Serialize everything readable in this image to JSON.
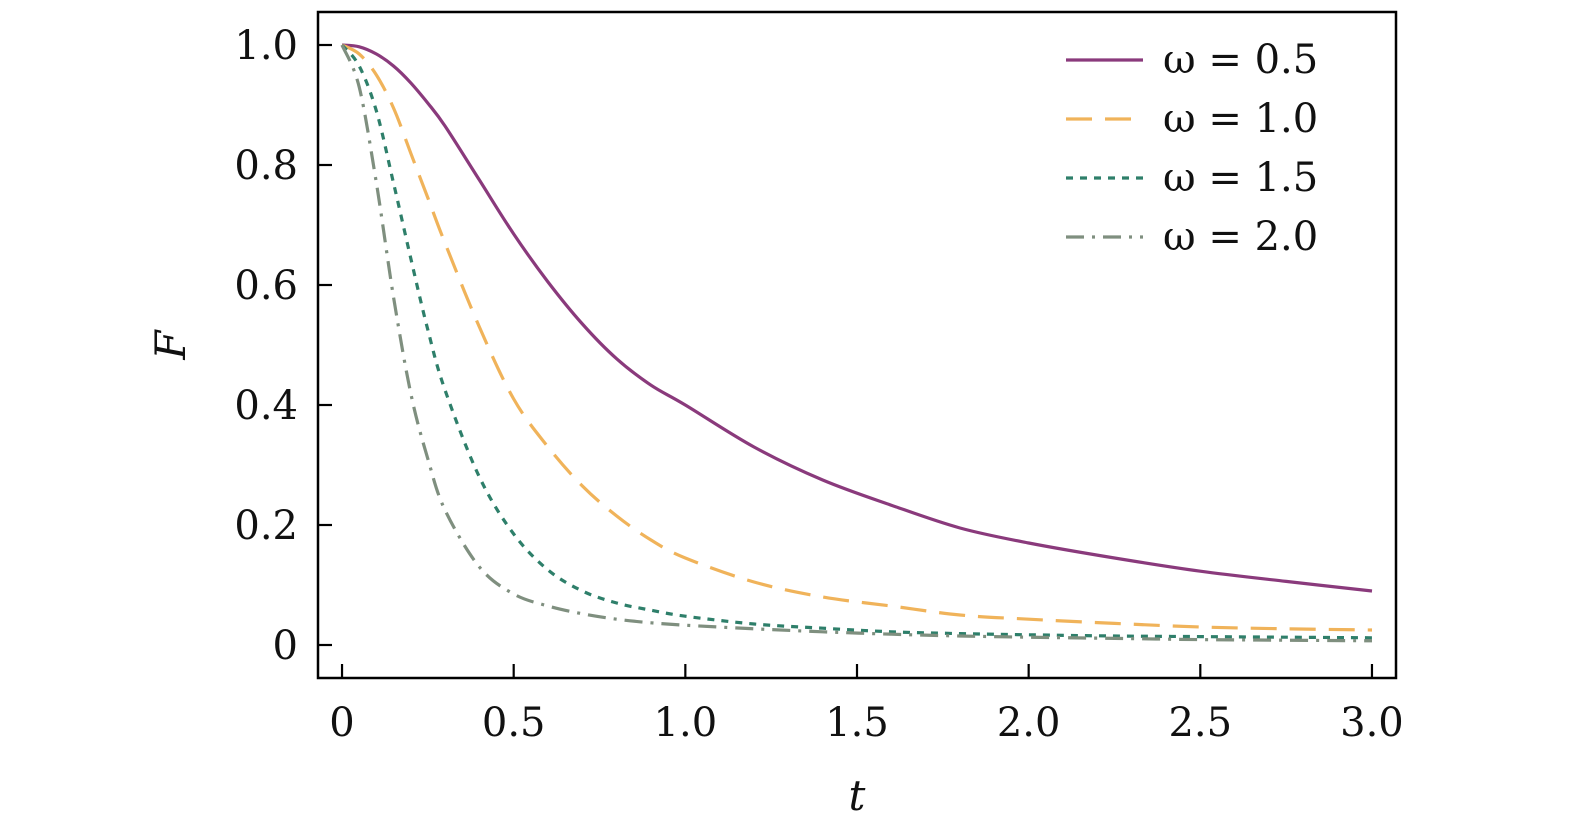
{
  "chart_data": {
    "type": "line",
    "xlabel": "t",
    "ylabel": "F",
    "xlim": [
      -0.07,
      3.07
    ],
    "ylim": [
      -0.055,
      1.055
    ],
    "x_ticks": [
      0,
      0.5,
      1.0,
      1.5,
      2.0,
      2.5,
      3.0
    ],
    "x_tick_labels": [
      "0",
      "0.5",
      "1.0",
      "1.5",
      "2.0",
      "2.5",
      "3.0"
    ],
    "y_ticks": [
      0,
      0.2,
      0.4,
      0.6,
      0.8,
      1.0
    ],
    "y_tick_labels": [
      "0",
      "0.2",
      "0.4",
      "0.6",
      "0.8",
      "1.0"
    ],
    "grid": false,
    "legend_position": "top-right",
    "x": [
      0,
      0.05,
      0.1,
      0.15,
      0.2,
      0.25,
      0.3,
      0.4,
      0.5,
      0.6,
      0.7,
      0.8,
      0.9,
      1.0,
      1.2,
      1.4,
      1.6,
      1.8,
      2.0,
      2.25,
      2.5,
      2.75,
      3.0
    ],
    "series": [
      {
        "name": "ω = 0.5",
        "color": "#8a3a7c",
        "dash": "solid",
        "values": [
          1.0,
          0.997,
          0.985,
          0.965,
          0.937,
          0.903,
          0.865,
          0.775,
          0.685,
          0.605,
          0.535,
          0.477,
          0.433,
          0.4,
          0.33,
          0.275,
          0.233,
          0.195,
          0.17,
          0.145,
          0.123,
          0.106,
          0.09
        ]
      },
      {
        "name": "ω = 1.0",
        "color": "#f0b35a",
        "dash": "long-dash",
        "values": [
          1.0,
          0.985,
          0.95,
          0.895,
          0.82,
          0.745,
          0.67,
          0.53,
          0.41,
          0.33,
          0.265,
          0.215,
          0.175,
          0.145,
          0.105,
          0.08,
          0.065,
          0.05,
          0.043,
          0.036,
          0.03,
          0.027,
          0.025
        ]
      },
      {
        "name": "ω = 1.5",
        "color": "#2e7f6a",
        "dash": "dotted",
        "values": [
          1.0,
          0.965,
          0.89,
          0.77,
          0.645,
          0.525,
          0.425,
          0.28,
          0.185,
          0.125,
          0.09,
          0.07,
          0.058,
          0.048,
          0.035,
          0.028,
          0.022,
          0.019,
          0.017,
          0.015,
          0.014,
          0.013,
          0.012
        ]
      },
      {
        "name": "ω = 2.0",
        "color": "#7f8f7f",
        "dash": "dash-dot",
        "values": [
          1.0,
          0.93,
          0.77,
          0.58,
          0.42,
          0.31,
          0.225,
          0.13,
          0.085,
          0.065,
          0.052,
          0.043,
          0.037,
          0.033,
          0.027,
          0.022,
          0.018,
          0.015,
          0.013,
          0.011,
          0.009,
          0.008,
          0.007
        ]
      }
    ]
  }
}
